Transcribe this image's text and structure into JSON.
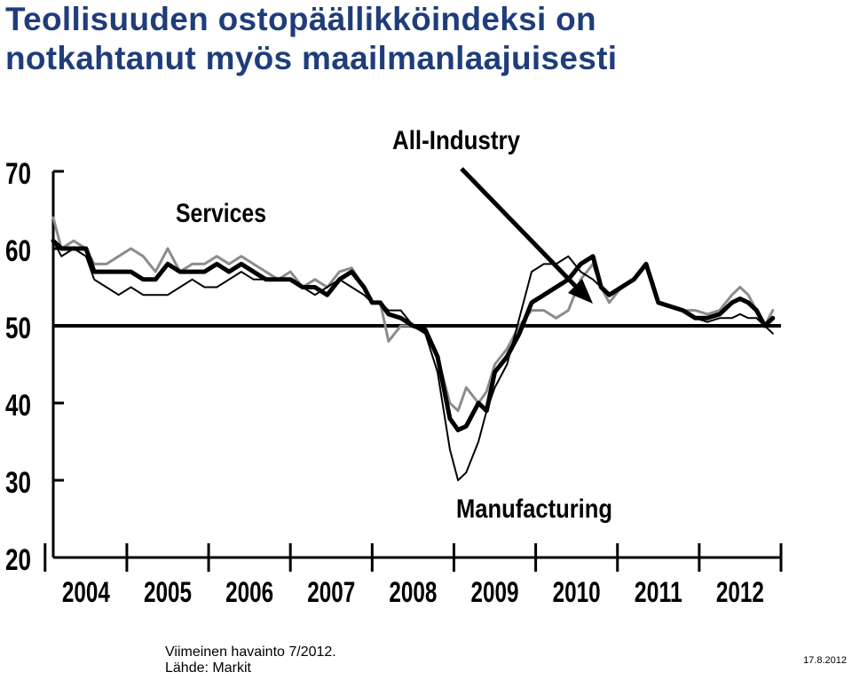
{
  "slide": {
    "title_line1": "Teollisuuden ostopäällikköindeksi on",
    "title_line2": "notkahtanut myös maailmanlaajuisesti",
    "footer_line1": "Viimeinen havainto 7/2012.",
    "footer_line2": "Lähde: Markit",
    "date": "17.8.2012",
    "title_color": "#1f3d7a"
  },
  "chart_data": {
    "type": "line",
    "ylim": [
      20,
      70
    ],
    "xlim": [
      2003.6,
      2012.5
    ],
    "yticks": [
      20,
      30,
      40,
      50,
      60,
      70
    ],
    "xticks": [
      "2004",
      "2005",
      "2006",
      "2007",
      "2008",
      "2009",
      "2010",
      "2011",
      "2012"
    ],
    "reference_line": 50,
    "annotations": [
      "All-Industry",
      "Services",
      "Manufacturing"
    ],
    "series": [
      {
        "name": "All-Industry",
        "color": "#000000",
        "x": [
          2003.6,
          2003.7,
          2003.85,
          2004.0,
          2004.1,
          2004.25,
          2004.4,
          2004.55,
          2004.7,
          2004.85,
          2005.0,
          2005.15,
          2005.3,
          2005.45,
          2005.6,
          2005.75,
          2005.9,
          2006.05,
          2006.2,
          2006.35,
          2006.5,
          2006.65,
          2006.8,
          2006.95,
          2007.1,
          2007.25,
          2007.4,
          2007.5,
          2007.6,
          2007.7,
          2007.85,
          2008.0,
          2008.15,
          2008.3,
          2008.45,
          2008.55,
          2008.65,
          2008.8,
          2008.9,
          2009.0,
          2009.15,
          2009.3,
          2009.45,
          2009.6,
          2009.75,
          2009.9,
          2010.05,
          2010.2,
          2010.3,
          2010.4,
          2010.55,
          2010.7,
          2010.85,
          2011.0,
          2011.15,
          2011.3,
          2011.45,
          2011.6,
          2011.75,
          2011.9,
          2012.0,
          2012.1,
          2012.2,
          2012.3,
          2012.4
        ],
        "y": [
          61,
          60,
          60,
          60,
          57,
          57,
          57,
          57,
          56,
          56,
          58,
          57,
          57,
          57,
          58,
          57,
          58,
          57,
          56,
          56,
          56,
          55,
          55,
          54,
          56,
          57,
          55,
          53,
          53,
          51.5,
          51,
          50,
          49.5,
          46,
          38,
          36.5,
          37,
          40,
          39,
          44,
          46,
          49,
          53,
          54,
          55,
          56,
          58,
          59,
          55,
          54,
          55,
          56,
          58,
          53,
          52.5,
          52,
          51,
          51,
          51.5,
          53,
          53.5,
          53,
          52,
          50,
          51
        ]
      },
      {
        "name": "Services",
        "color": "#8c8c8c",
        "x": [
          2003.6,
          2003.7,
          2003.85,
          2004.0,
          2004.1,
          2004.25,
          2004.4,
          2004.55,
          2004.7,
          2004.85,
          2005.0,
          2005.15,
          2005.3,
          2005.45,
          2005.6,
          2005.75,
          2005.9,
          2006.05,
          2006.2,
          2006.35,
          2006.5,
          2006.65,
          2006.8,
          2006.95,
          2007.1,
          2007.25,
          2007.4,
          2007.5,
          2007.6,
          2007.7,
          2007.85,
          2008.0,
          2008.15,
          2008.3,
          2008.45,
          2008.55,
          2008.65,
          2008.8,
          2008.9,
          2009.0,
          2009.15,
          2009.3,
          2009.45,
          2009.6,
          2009.75,
          2009.9,
          2010.05,
          2010.2,
          2010.3,
          2010.4,
          2010.55,
          2010.7,
          2010.85,
          2011.0,
          2011.15,
          2011.3,
          2011.45,
          2011.6,
          2011.75,
          2011.9,
          2012.0,
          2012.1,
          2012.2,
          2012.3,
          2012.4
        ],
        "y": [
          64,
          60,
          61,
          60,
          58,
          58,
          59,
          60,
          59,
          57,
          60,
          57,
          58,
          58,
          59,
          58,
          59,
          58,
          57,
          56,
          57,
          55,
          56,
          55,
          57,
          57.5,
          55,
          53,
          53,
          48,
          50,
          50,
          49,
          46,
          40,
          39,
          42,
          40,
          41.5,
          45,
          47,
          50,
          52,
          52,
          51,
          52,
          56,
          58,
          55,
          53,
          55,
          56,
          58,
          53,
          52.5,
          52,
          52,
          51.5,
          52,
          54,
          55,
          54,
          52,
          50,
          52
        ]
      },
      {
        "name": "Manufacturing",
        "color": "#000000",
        "x": [
          2003.6,
          2003.7,
          2003.85,
          2004.0,
          2004.1,
          2004.25,
          2004.4,
          2004.55,
          2004.7,
          2004.85,
          2005.0,
          2005.15,
          2005.3,
          2005.45,
          2005.6,
          2005.75,
          2005.9,
          2006.05,
          2006.2,
          2006.35,
          2006.5,
          2006.65,
          2006.8,
          2006.95,
          2007.1,
          2007.25,
          2007.4,
          2007.5,
          2007.6,
          2007.7,
          2007.85,
          2008.0,
          2008.15,
          2008.3,
          2008.45,
          2008.55,
          2008.65,
          2008.8,
          2008.9,
          2009.0,
          2009.15,
          2009.3,
          2009.45,
          2009.6,
          2009.75,
          2009.9,
          2010.05,
          2010.2,
          2010.3,
          2010.4,
          2010.55,
          2010.7,
          2010.85,
          2011.0,
          2011.15,
          2011.3,
          2011.45,
          2011.6,
          2011.75,
          2011.9,
          2012.0,
          2012.1,
          2012.2,
          2012.3,
          2012.4
        ],
        "y": [
          61,
          59,
          60,
          59,
          56,
          55,
          54,
          55,
          54,
          54,
          54,
          55,
          56,
          55,
          55,
          56,
          57,
          56,
          56,
          56,
          56,
          55,
          54,
          55,
          56,
          55,
          54,
          53,
          53,
          52,
          52,
          50,
          49,
          44,
          34,
          30,
          31,
          35,
          39,
          42,
          45,
          51,
          57,
          58,
          58,
          59,
          57,
          56,
          55,
          54,
          55,
          56,
          58,
          53,
          52.5,
          52,
          51,
          50.5,
          51,
          51,
          51.5,
          51,
          51,
          50,
          49
        ]
      }
    ]
  }
}
